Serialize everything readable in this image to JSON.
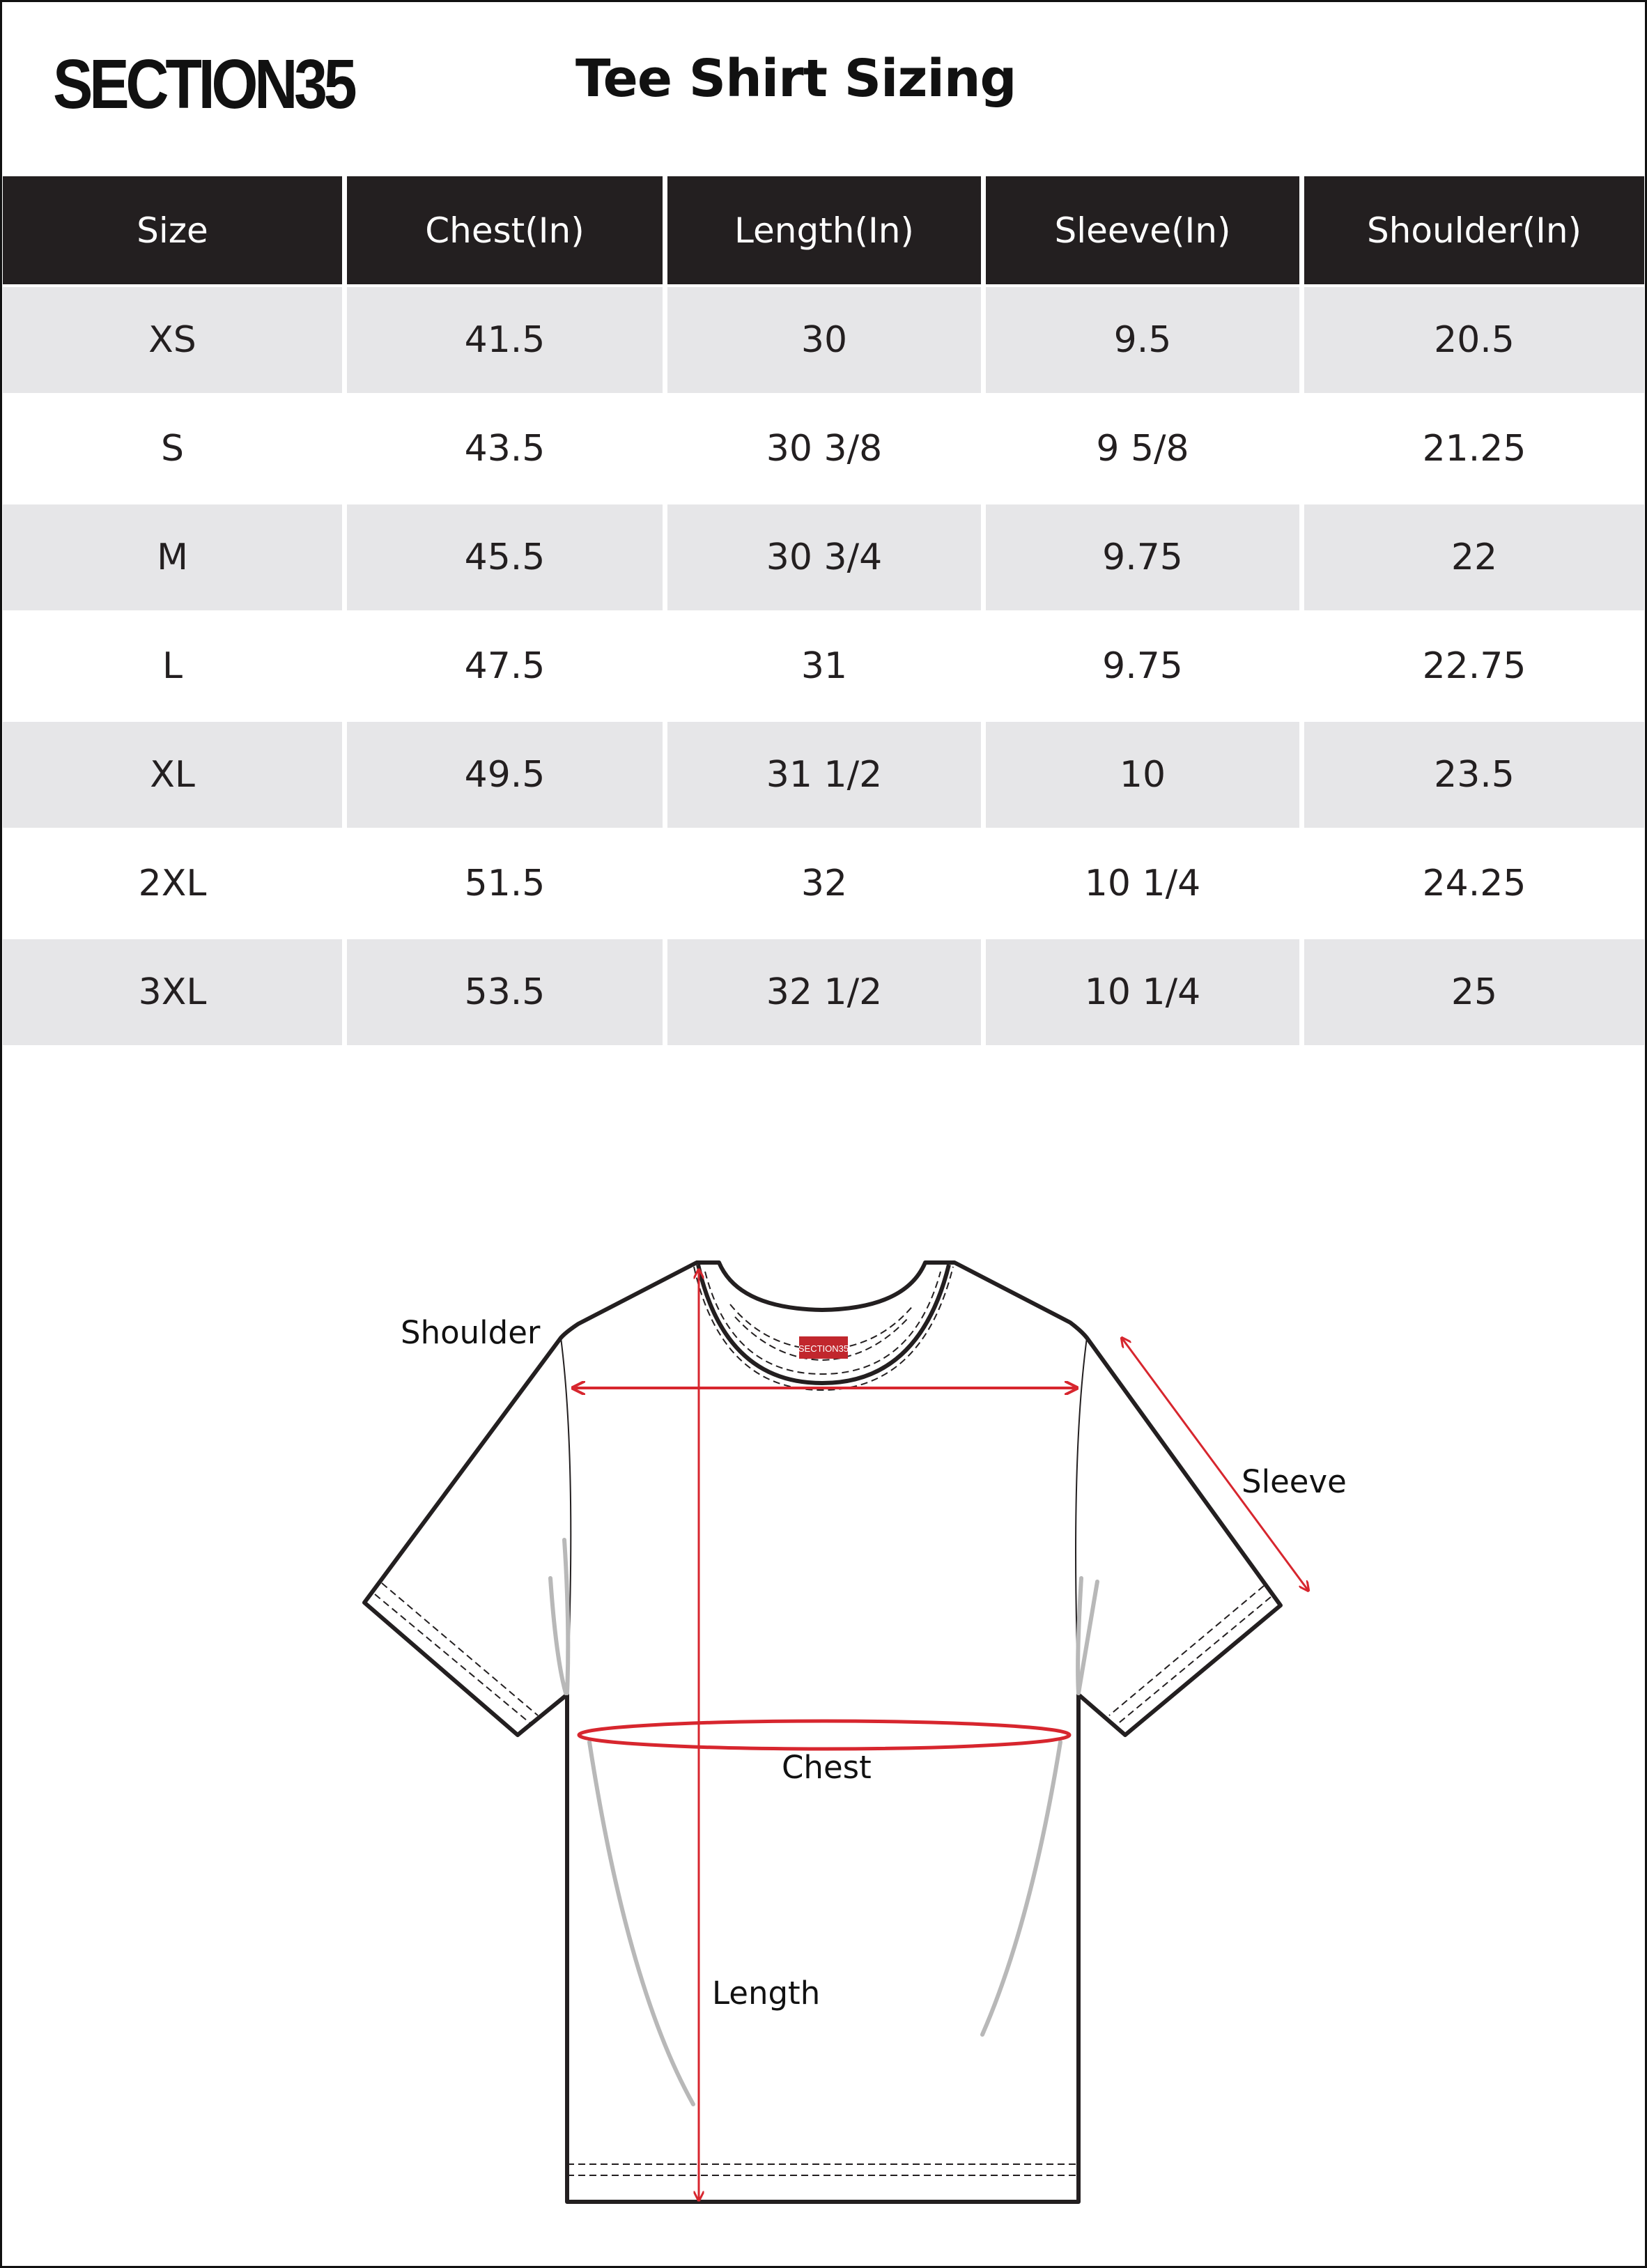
{
  "brand": {
    "logo_text": "SECTION35"
  },
  "title": "Tee Shirt Sizing",
  "table": {
    "headers": [
      "Size",
      "Chest(In)",
      "Length(In)",
      "Sleeve(In)",
      "Shoulder(In)"
    ],
    "rows": [
      [
        "XS",
        "41.5",
        "30",
        "9.5",
        "20.5"
      ],
      [
        "S",
        "43.5",
        "30 3/8",
        "9 5/8",
        "21.25"
      ],
      [
        "M",
        "45.5",
        "30 3/4",
        "9.75",
        "22"
      ],
      [
        "L",
        "47.5",
        "31",
        "9.75",
        "22.75"
      ],
      [
        "XL",
        "49.5",
        "31 1/2",
        "10",
        "23.5"
      ],
      [
        "2XL",
        "51.5",
        "32",
        "10 1/4",
        "24.25"
      ],
      [
        "3XL",
        "53.5",
        "32 1/2",
        "10 1/4",
        "25"
      ]
    ]
  },
  "diagram": {
    "labels": {
      "shoulder": "Shoulder",
      "sleeve": "Sleeve",
      "chest": "Chest",
      "length": "Length"
    },
    "tag_text": "SECTION35",
    "colors": {
      "measure": "#d7262e",
      "outline": "#231f20",
      "header_bg": "#231f20",
      "alt_row": "#e6e6e8"
    }
  }
}
